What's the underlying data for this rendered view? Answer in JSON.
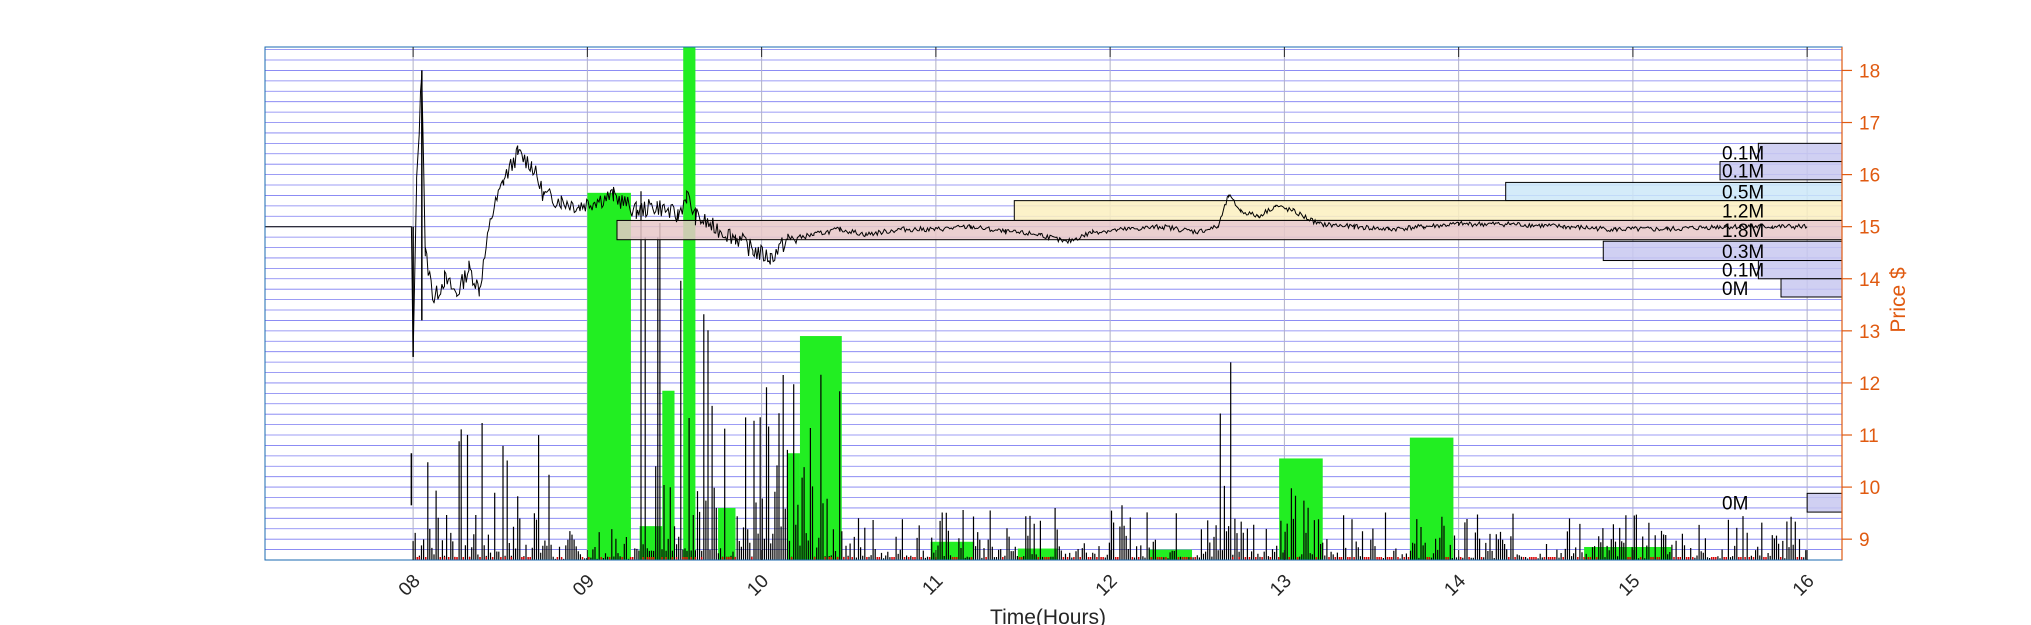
{
  "chart_data": {
    "type": "bar",
    "title": "",
    "xlabel": "Time(Hours)",
    "ylabel": "Price $",
    "x_range_hours": [
      7.15,
      16.2
    ],
    "ylim": [
      8.6,
      18.45
    ],
    "x_ticks": [
      "08",
      "09",
      "10",
      "11",
      "12",
      "13",
      "14",
      "15",
      "16"
    ],
    "y_ticks": [
      "9",
      "10",
      "11",
      "12",
      "13",
      "14",
      "15",
      "16",
      "17",
      "18"
    ],
    "grid": true,
    "price_series": {
      "name": "",
      "points": [
        [
          7.15,
          15.0
        ],
        [
          7.99,
          15.0
        ],
        [
          8.0,
          12.5
        ],
        [
          8.02,
          15.8
        ],
        [
          8.05,
          18.0
        ],
        [
          8.07,
          14.5
        ],
        [
          8.12,
          13.6
        ],
        [
          8.18,
          14.0
        ],
        [
          8.25,
          13.7
        ],
        [
          8.32,
          14.2
        ],
        [
          8.38,
          13.8
        ],
        [
          8.45,
          15.2
        ],
        [
          8.52,
          15.9
        ],
        [
          8.6,
          16.4
        ],
        [
          8.68,
          16.2
        ],
        [
          8.75,
          15.6
        ],
        [
          8.85,
          15.5
        ],
        [
          8.95,
          15.4
        ],
        [
          9.05,
          15.5
        ],
        [
          9.15,
          15.6
        ],
        [
          9.28,
          15.3
        ],
        [
          9.4,
          15.4
        ],
        [
          9.52,
          15.2
        ],
        [
          9.57,
          15.6
        ],
        [
          9.62,
          15.2
        ],
        [
          9.72,
          15.0
        ],
        [
          9.85,
          14.8
        ],
        [
          9.95,
          14.55
        ],
        [
          10.05,
          14.4
        ],
        [
          10.15,
          14.75
        ],
        [
          10.3,
          14.85
        ],
        [
          10.45,
          14.95
        ],
        [
          10.6,
          14.85
        ],
        [
          10.8,
          14.95
        ],
        [
          11.0,
          14.95
        ],
        [
          11.2,
          15.0
        ],
        [
          11.4,
          14.9
        ],
        [
          11.6,
          14.85
        ],
        [
          11.75,
          14.7
        ],
        [
          11.9,
          14.9
        ],
        [
          12.1,
          14.95
        ],
        [
          12.3,
          15.0
        ],
        [
          12.5,
          14.9
        ],
        [
          12.62,
          15.0
        ],
        [
          12.68,
          15.6
        ],
        [
          12.75,
          15.3
        ],
        [
          12.85,
          15.2
        ],
        [
          12.95,
          15.4
        ],
        [
          13.05,
          15.3
        ],
        [
          13.2,
          15.05
        ],
        [
          13.4,
          15.0
        ],
        [
          13.6,
          14.95
        ],
        [
          13.8,
          15.0
        ],
        [
          14.0,
          15.05
        ],
        [
          14.3,
          15.05
        ],
        [
          14.6,
          15.0
        ],
        [
          14.9,
          14.95
        ],
        [
          15.2,
          14.95
        ],
        [
          15.5,
          15.0
        ],
        [
          15.8,
          15.0
        ],
        [
          16.0,
          15.0
        ]
      ]
    },
    "volume_bars_hourly": {
      "name": "",
      "color": "#22ee22",
      "bars": [
        {
          "x0": 9.0,
          "x1": 9.25,
          "top": 15.65
        },
        {
          "x0": 9.3,
          "x1": 9.43,
          "top": 9.25
        },
        {
          "x0": 9.43,
          "x1": 9.5,
          "top": 11.85
        },
        {
          "x0": 9.55,
          "x1": 9.62,
          "top": 18.45
        },
        {
          "x0": 9.75,
          "x1": 9.85,
          "top": 9.6
        },
        {
          "x0": 10.15,
          "x1": 10.22,
          "top": 10.65
        },
        {
          "x0": 10.22,
          "x1": 10.46,
          "top": 12.9
        },
        {
          "x0": 10.97,
          "x1": 11.22,
          "top": 8.95
        },
        {
          "x0": 11.47,
          "x1": 11.7,
          "top": 8.82
        },
        {
          "x0": 12.22,
          "x1": 12.47,
          "top": 8.8
        },
        {
          "x0": 12.97,
          "x1": 13.22,
          "top": 10.55
        },
        {
          "x0": 13.72,
          "x1": 13.97,
          "top": 10.95
        },
        {
          "x0": 14.72,
          "x1": 15.22,
          "top": 8.85
        }
      ]
    },
    "volume_profile": [
      {
        "label": "0.1M",
        "y0": 16.25,
        "y1": 16.6,
        "x_start": 15.72,
        "fill": "#c8c8f0"
      },
      {
        "label": "0.1M",
        "y0": 15.9,
        "y1": 16.25,
        "x_start": 15.5,
        "fill": "#c8c8f0"
      },
      {
        "label": "0.5M",
        "y0": 15.5,
        "y1": 15.85,
        "x_start": 14.27,
        "fill": "#cce8f8"
      },
      {
        "label": "1.2M",
        "y0": 15.12,
        "y1": 15.5,
        "x_start": 11.45,
        "fill": "#fbf0c0"
      },
      {
        "label": "1.8M",
        "y0": 14.75,
        "y1": 15.12,
        "x_start": 9.17,
        "fill": "#e8c8c8"
      },
      {
        "label": "0.3M",
        "y0": 14.35,
        "y1": 14.72,
        "x_start": 14.83,
        "fill": "#c8c8f0"
      },
      {
        "label": "0.1M",
        "y0": 14.0,
        "y1": 14.35,
        "x_start": 15.72,
        "fill": "#c8c8f0"
      },
      {
        "label": "0M",
        "y0": 13.65,
        "y1": 14.0,
        "x_start": 15.85,
        "fill": "#c8c8f0"
      },
      {
        "label": "0M",
        "y0": 9.52,
        "y1": 9.88,
        "x_start": 16.0,
        "fill": "#c8c8f0"
      }
    ],
    "colors": {
      "axis_right": "#e05a10",
      "grid_h": "#5050ee",
      "grid_v": "#b0b0c8",
      "frame": "#1a6ab0",
      "price": "#000000",
      "volume_ticks": "#000000",
      "volume_low": "#dd0000"
    }
  }
}
